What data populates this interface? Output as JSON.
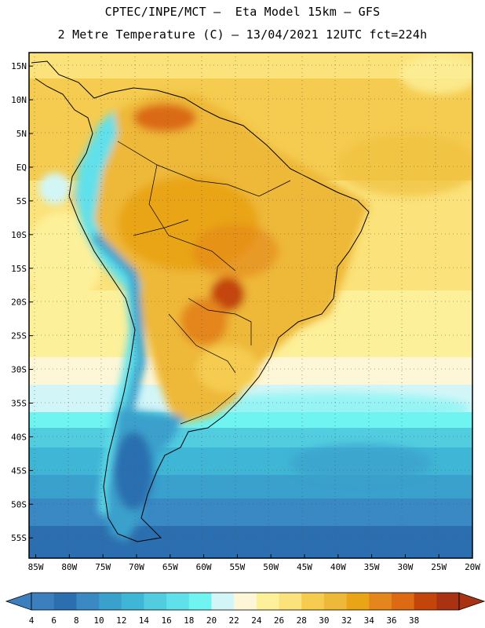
{
  "header": {
    "line1": "CPTEC/INPE/MCT –  Eta Model 15km – GFS",
    "line2": "2 Metre Temperature (C) – 13/04/2021 12UTC fct=224h"
  },
  "axes": {
    "lat_labels": [
      {
        "label": "15N",
        "lat": 15
      },
      {
        "label": "10N",
        "lat": 10
      },
      {
        "label": "5N",
        "lat": 5
      },
      {
        "label": "EQ",
        "lat": 0
      },
      {
        "label": "5S",
        "lat": -5
      },
      {
        "label": "10S",
        "lat": -10
      },
      {
        "label": "15S",
        "lat": -15
      },
      {
        "label": "20S",
        "lat": -20
      },
      {
        "label": "25S",
        "lat": -25
      },
      {
        "label": "30S",
        "lat": -30
      },
      {
        "label": "35S",
        "lat": -35
      },
      {
        "label": "40S",
        "lat": -40
      },
      {
        "label": "45S",
        "lat": -45
      },
      {
        "label": "50S",
        "lat": -50
      },
      {
        "label": "55S",
        "lat": -55
      }
    ],
    "lon_labels": [
      {
        "label": "85W",
        "lon": -85
      },
      {
        "label": "80W",
        "lon": -80
      },
      {
        "label": "75W",
        "lon": -75
      },
      {
        "label": "70W",
        "lon": -70
      },
      {
        "label": "65W",
        "lon": -65
      },
      {
        "label": "60W",
        "lon": -60
      },
      {
        "label": "55W",
        "lon": -55
      },
      {
        "label": "50W",
        "lon": -50
      },
      {
        "label": "45W",
        "lon": -45
      },
      {
        "label": "40W",
        "lon": -40
      },
      {
        "label": "35W",
        "lon": -35
      },
      {
        "label": "30W",
        "lon": -30
      },
      {
        "label": "25W",
        "lon": -25
      },
      {
        "label": "20W",
        "lon": -20
      }
    ],
    "lat_range": [
      -58,
      17
    ],
    "lon_range": [
      -86,
      -20
    ]
  },
  "colorbar": {
    "ticks": [
      "4",
      "6",
      "8",
      "10",
      "12",
      "14",
      "16",
      "18",
      "20",
      "22",
      "24",
      "26",
      "28",
      "30",
      "32",
      "34",
      "36",
      "38"
    ],
    "colors": [
      "#3c7fbe",
      "#2c6fb0",
      "#3a88c4",
      "#3aa0cc",
      "#40b6d6",
      "#52cde0",
      "#60e0ea",
      "#70f4f2",
      "#d2f6f8",
      "#fdf7d8",
      "#fdf09a",
      "#fbe27a",
      "#f5cc50",
      "#eeb838",
      "#e9a516",
      "#e4861c",
      "#db6a12",
      "#c4450c",
      "#a83212"
    ],
    "under_color": "#3c7fbe",
    "over_color": "#a83212"
  },
  "legend_bands_note_none": null
}
